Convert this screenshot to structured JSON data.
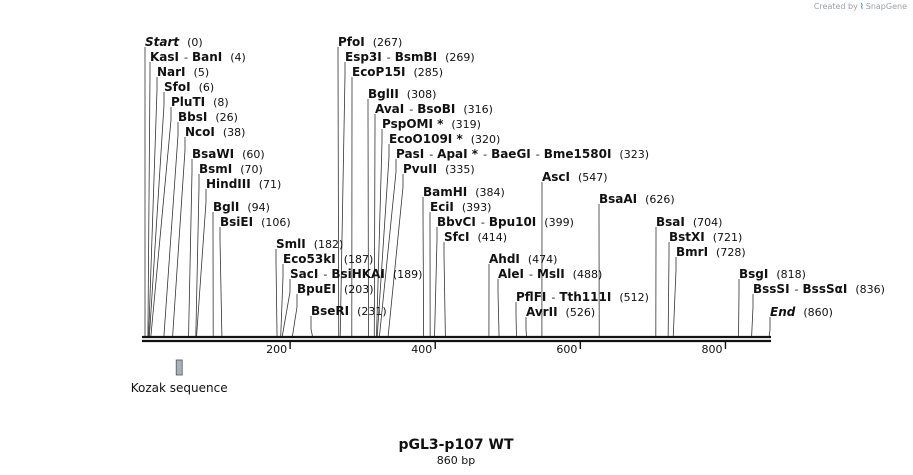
{
  "credit": {
    "prefix": "Created by",
    "brand": "SnapGene"
  },
  "sequence": {
    "name": "pGL3-p107 WT",
    "length_label": "860 bp",
    "length": 860
  },
  "ruler": {
    "ticks": [
      200,
      400,
      600,
      800
    ]
  },
  "features": [
    {
      "name": "Kozak sequence",
      "start": 43,
      "end": 50,
      "color": "#a8b0bd"
    }
  ],
  "sites": [
    {
      "pos": 0,
      "labels": [
        "Start"
      ],
      "extra": [],
      "pos_label": "(0)",
      "italic": true
    },
    {
      "pos": 4,
      "labels": [
        "KasI",
        "BanI"
      ],
      "extra": [],
      "pos_label": "(4)"
    },
    {
      "pos": 5,
      "labels": [
        "NarI"
      ],
      "extra": [],
      "pos_label": "(5)"
    },
    {
      "pos": 6,
      "labels": [
        "SfoI"
      ],
      "extra": [],
      "pos_label": "(6)"
    },
    {
      "pos": 8,
      "labels": [
        "PluTI"
      ],
      "extra": [],
      "pos_label": "(8)"
    },
    {
      "pos": 26,
      "labels": [
        "BbsI"
      ],
      "extra": [],
      "pos_label": "(26)"
    },
    {
      "pos": 38,
      "labels": [
        "NcoI"
      ],
      "extra": [],
      "pos_label": "(38)"
    },
    {
      "pos": 60,
      "labels": [
        "BsaWI"
      ],
      "extra": [],
      "pos_label": "(60)"
    },
    {
      "pos": 70,
      "labels": [
        "BsmI"
      ],
      "extra": [],
      "pos_label": "(70)"
    },
    {
      "pos": 71,
      "labels": [
        "HindIII"
      ],
      "extra": [],
      "pos_label": "(71)"
    },
    {
      "pos": 94,
      "labels": [
        "BglI"
      ],
      "extra": [],
      "pos_label": "(94)"
    },
    {
      "pos": 106,
      "labels": [
        "BsiEI"
      ],
      "extra": [],
      "pos_label": "(106)"
    },
    {
      "pos": 182,
      "labels": [
        "SmlI"
      ],
      "extra": [],
      "pos_label": "(182)"
    },
    {
      "pos": 187,
      "labels": [
        "Eco53kI"
      ],
      "extra": [],
      "pos_label": "(187)"
    },
    {
      "pos": 189,
      "labels": [
        "SacI",
        "BsiHKAI"
      ],
      "extra": [],
      "pos_label": "(189)"
    },
    {
      "pos": 203,
      "labels": [
        "BpuEI"
      ],
      "extra": [],
      "pos_label": "(203)"
    },
    {
      "pos": 231,
      "labels": [
        "BseRI"
      ],
      "extra": [],
      "pos_label": "(231)"
    },
    {
      "pos": 267,
      "labels": [
        "PfoI"
      ],
      "extra": [],
      "pos_label": "(267)"
    },
    {
      "pos": 269,
      "labels": [
        "Esp3I",
        "BsmBI"
      ],
      "extra": [],
      "pos_label": "(269)"
    },
    {
      "pos": 285,
      "labels": [
        "EcoP15I"
      ],
      "extra": [],
      "pos_label": "(285)"
    },
    {
      "pos": 308,
      "labels": [
        "BglII"
      ],
      "extra": [],
      "pos_label": "(308)"
    },
    {
      "pos": 316,
      "labels": [
        "AvaI",
        "BsoBI"
      ],
      "extra": [],
      "pos_label": "(316)"
    },
    {
      "pos": 319,
      "labels": [
        "PspOMI *"
      ],
      "extra": [],
      "pos_label": "(319)"
    },
    {
      "pos": 320,
      "labels": [
        "EcoO109I *"
      ],
      "extra": [],
      "pos_label": "(320)"
    },
    {
      "pos": 323,
      "labels": [
        "PasI",
        "ApaI *",
        "BaeGI",
        "Bme1580I"
      ],
      "extra": [],
      "pos_label": "(323)"
    },
    {
      "pos": 335,
      "labels": [
        "PvuII"
      ],
      "extra": [],
      "pos_label": "(335)"
    },
    {
      "pos": 384,
      "labels": [
        "BamHI"
      ],
      "extra": [],
      "pos_label": "(384)"
    },
    {
      "pos": 393,
      "labels": [
        "EciI"
      ],
      "extra": [],
      "pos_label": "(393)"
    },
    {
      "pos": 399,
      "labels": [
        "BbvCI",
        "Bpu10I"
      ],
      "extra": [],
      "pos_label": "(399)"
    },
    {
      "pos": 414,
      "labels": [
        "SfcI"
      ],
      "extra": [],
      "pos_label": "(414)"
    },
    {
      "pos": 474,
      "labels": [
        "AhdI"
      ],
      "extra": [],
      "pos_label": "(474)"
    },
    {
      "pos": 488,
      "labels": [
        "AleI",
        "MslI"
      ],
      "extra": [],
      "pos_label": "(488)"
    },
    {
      "pos": 512,
      "labels": [
        "PflFI",
        "Tth111I"
      ],
      "extra": [],
      "pos_label": "(512)"
    },
    {
      "pos": 526,
      "labels": [
        "AvrII"
      ],
      "extra": [],
      "pos_label": "(526)"
    },
    {
      "pos": 547,
      "labels": [
        "AscI"
      ],
      "extra": [],
      "pos_label": "(547)"
    },
    {
      "pos": 626,
      "labels": [
        "BsaAI"
      ],
      "extra": [],
      "pos_label": "(626)"
    },
    {
      "pos": 704,
      "labels": [
        "BsaI"
      ],
      "extra": [],
      "pos_label": "(704)"
    },
    {
      "pos": 721,
      "labels": [
        "BstXI"
      ],
      "extra": [],
      "pos_label": "(721)"
    },
    {
      "pos": 728,
      "labels": [
        "BmrI"
      ],
      "extra": [],
      "pos_label": "(728)"
    },
    {
      "pos": 818,
      "labels": [
        "BsgI"
      ],
      "extra": [],
      "pos_label": "(818)"
    },
    {
      "pos": 836,
      "labels": [
        "BssSI",
        "BssSαI"
      ],
      "extra": [],
      "pos_label": "(836)"
    },
    {
      "pos": 860,
      "labels": [
        "End"
      ],
      "extra": [],
      "pos_label": "(860)",
      "italic": true
    }
  ]
}
